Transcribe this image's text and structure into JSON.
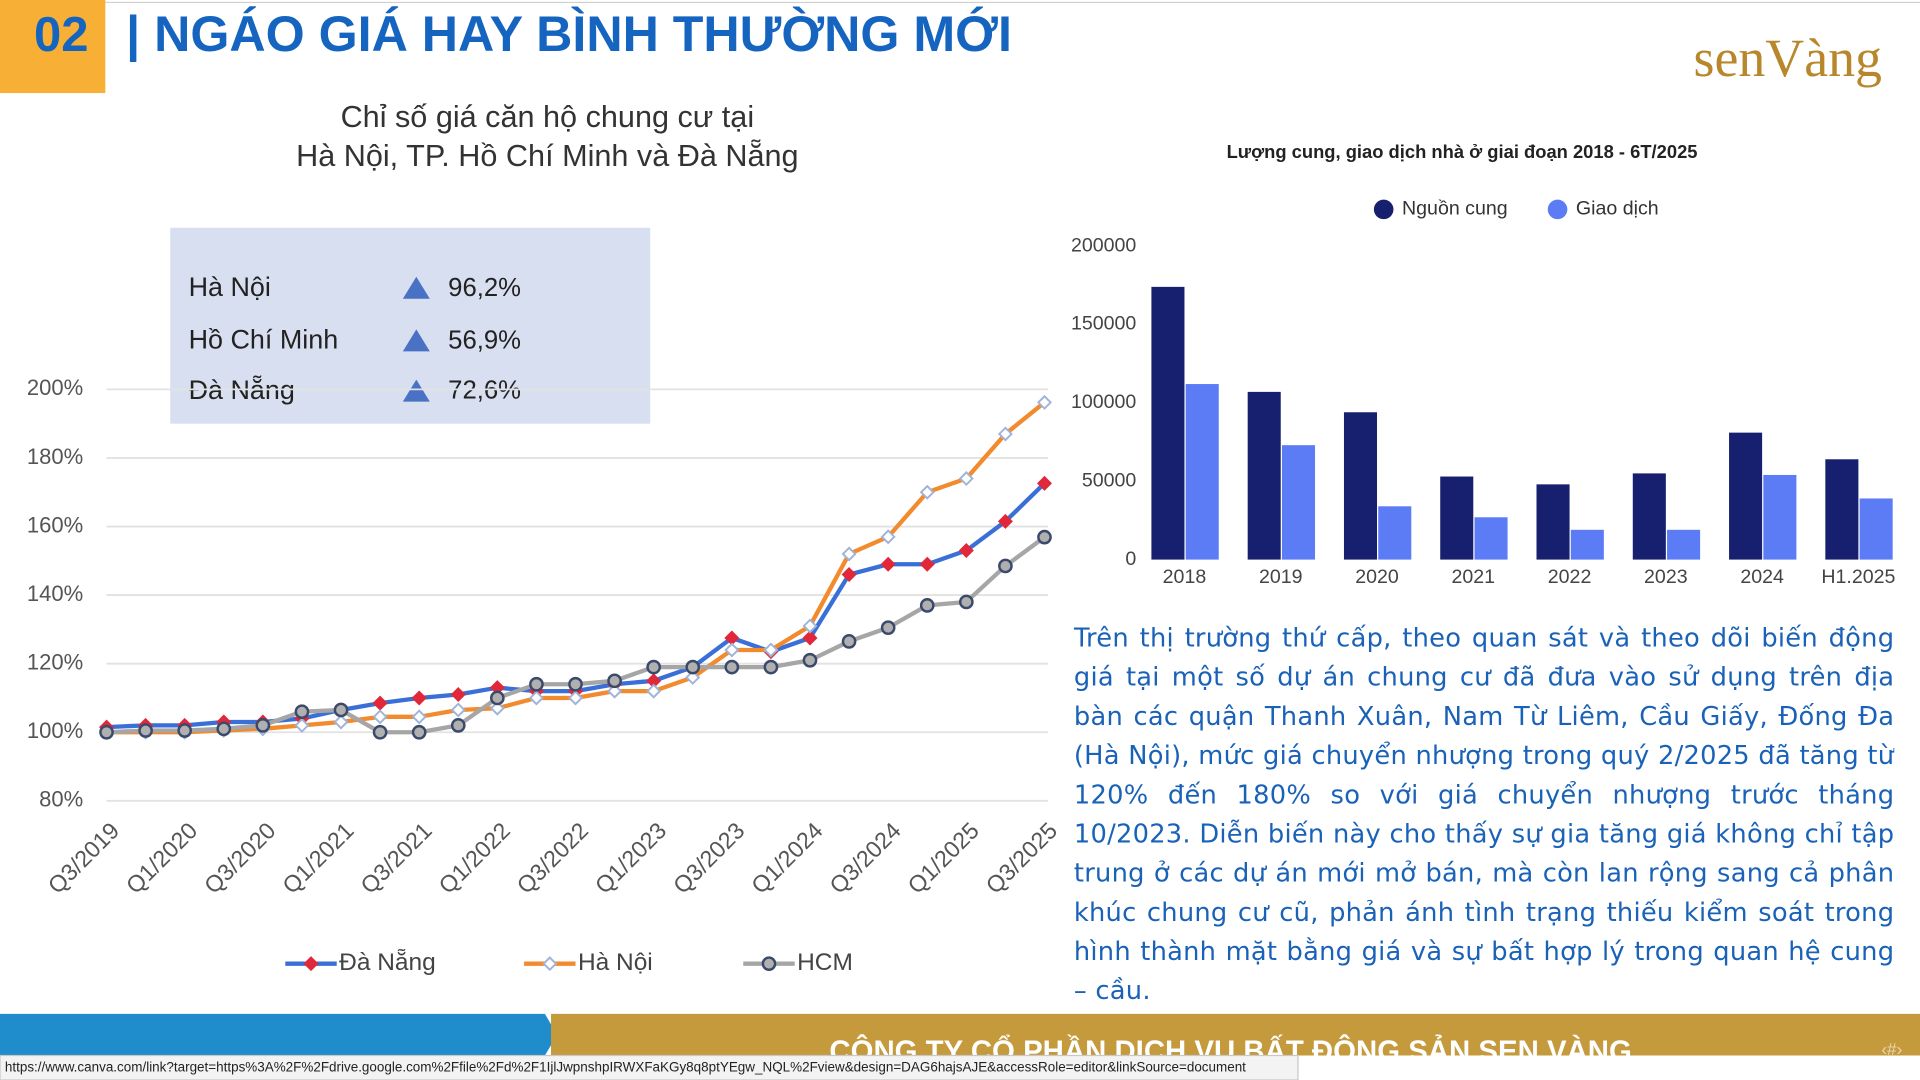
{
  "header": {
    "number": "02",
    "title": "| NGÁO GIÁ HAY BÌNH THƯỜNG MỚI",
    "logo": "senVàng"
  },
  "chart_data": [
    {
      "type": "line",
      "title": [
        "Chỉ số giá căn hộ chung cư tại",
        "Hà Nội, TP. Hồ Chí Minh và Đà Nẵng"
      ],
      "summary": [
        {
          "label": "Hà Nội",
          "change": "96,2%"
        },
        {
          "label": "Hồ Chí Minh",
          "change": "56,9%"
        },
        {
          "label": "Đà Nẵng",
          "change": "72,6%"
        }
      ],
      "categories": [
        "Q3/2019",
        null,
        "Q1/2020",
        null,
        "Q3/2020",
        null,
        "Q1/2021",
        null,
        "Q3/2021",
        null,
        "Q1/2022",
        null,
        "Q3/2022",
        null,
        "Q1/2023",
        null,
        "Q3/2023",
        null,
        "Q1/2024",
        null,
        "Q3/2024",
        null,
        "Q1/2025",
        null,
        "Q3/2025"
      ],
      "series": [
        {
          "name": "Đà Nẵng",
          "color": "#3a6fd8",
          "marker": "diamond",
          "marker_color": "#e0283a",
          "values": [
            101.5,
            102,
            102,
            103,
            103,
            104,
            106.5,
            108.5,
            110,
            111,
            113,
            112,
            112,
            114,
            115,
            119,
            127.5,
            123.5,
            127.5,
            146,
            149,
            149,
            153,
            161.5,
            172.6
          ]
        },
        {
          "name": "Hà Nội",
          "color": "#f28a2e",
          "marker": "open-diamond",
          "marker_color": "#9fb4d8",
          "values": [
            100,
            100,
            100,
            100.5,
            101,
            102,
            103,
            104.5,
            104.5,
            106.5,
            107,
            110,
            110,
            112,
            112,
            116,
            124,
            124,
            131,
            152,
            157,
            170,
            174,
            187,
            196.2
          ]
        },
        {
          "name": "HCM",
          "color": "#a6a6a6",
          "marker": "circle",
          "marker_color": "#3b4a6b",
          "values": [
            100,
            100.5,
            100.5,
            101,
            102,
            106,
            106.5,
            100,
            100,
            102,
            110,
            114,
            114,
            115,
            119,
            119,
            119,
            119,
            121,
            126.5,
            130.5,
            137,
            138,
            148.5,
            156.9
          ]
        }
      ],
      "ylim": [
        80,
        200
      ],
      "yticks": [
        {
          "value": 80,
          "label": "80%"
        },
        {
          "value": 100,
          "label": "100%"
        },
        {
          "value": 120,
          "label": "120%"
        },
        {
          "value": 140,
          "label": "140%"
        },
        {
          "value": 160,
          "label": "160%"
        },
        {
          "value": 180,
          "label": "180%"
        },
        {
          "value": 200,
          "label": "200%"
        }
      ],
      "grid": true,
      "legend": "bottom"
    },
    {
      "type": "bar",
      "title": "Lượng cung, giao dịch nhà ở giai đoạn 2018 - 6T/2025",
      "categories": [
        "2018",
        "2019",
        "2020",
        "2021",
        "2022",
        "2023",
        "2024",
        "H1.2025"
      ],
      "series": [
        {
          "name": "Nguồn cung",
          "color": "#17206e",
          "values": [
            174000,
            107000,
            94000,
            53000,
            48000,
            55000,
            81000,
            64000
          ]
        },
        {
          "name": "Giao dịch",
          "color": "#5b7cf5",
          "values": [
            112000,
            73000,
            34000,
            27000,
            19000,
            19000,
            54000,
            39000
          ]
        }
      ],
      "ylim": [
        0,
        200000
      ],
      "yticks": [
        0,
        50000,
        100000,
        150000,
        200000
      ],
      "grid": false,
      "legend": "top"
    }
  ],
  "paragraph": "Trên thị trường thứ cấp, theo quan sát và theo dõi biến động giá tại một số dự án chung cư đã đưa vào sử dụng trên địa bàn các quận Thanh Xuân, Nam Từ Liêm, Cầu Giấy, Đống Đa (Hà Nội), mức giá chuyển nhượng trong quý 2/2025 đã tăng từ 120% đến 180% so với giá chuyển nhượng trước tháng 10/2023. Diễn biến này cho thấy sự gia tăng giá không chỉ tập trung ở các dự án mới mở bán, mà còn lan rộng sang cả phân khúc chung cư cũ, phản ánh tình trạng thiếu kiểm soát trong hình thành mặt bằng giá và sự bất hợp lý trong quan hệ cung – cầu.",
  "footer": {
    "company": "CÔNG TY CỔ PHẦN DỊCH VỤ BẤT ĐỘNG SẢN SEN VÀNG",
    "page": "‹#›",
    "url": "https://www.canva.com/link?target=https%3A%2F%2Fdrive.google.com%2Ffile%2Fd%2F1IjlJwpnshpIRWXFaKGy8q8ptYEgw_NQL%2Fview&design=DAG6hajsAJE&accessRole=editor&linkSource=document"
  }
}
